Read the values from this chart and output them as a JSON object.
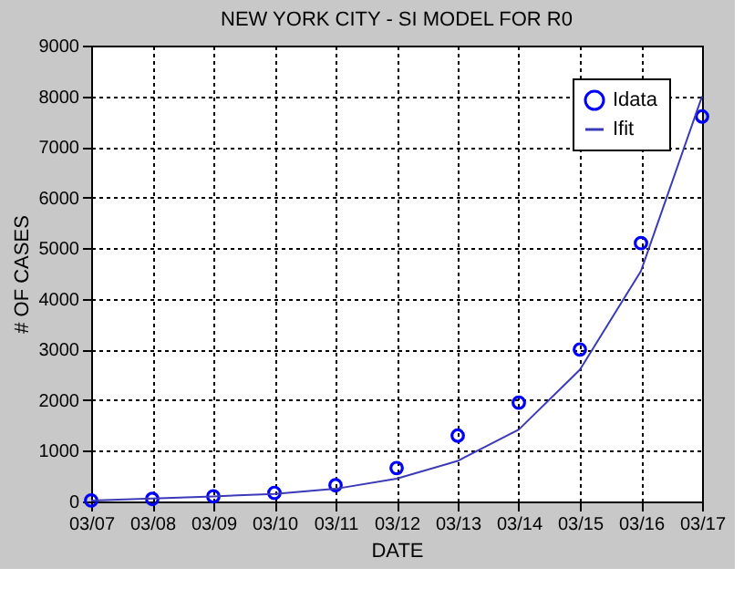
{
  "chart_data": {
    "type": "line",
    "title": "NEW YORK CITY - SI MODEL FOR R0",
    "xlabel": "DATE",
    "ylabel": "# OF CASES",
    "categories": [
      "03/07",
      "03/08",
      "03/09",
      "03/10",
      "03/11",
      "03/12",
      "03/13",
      "03/14",
      "03/15",
      "03/16",
      "03/17"
    ],
    "series": [
      {
        "name": "Idata",
        "type": "scatter",
        "marker": "circle",
        "color": "#0000ff",
        "values": [
          20,
          50,
          100,
          170,
          320,
          660,
          1300,
          1950,
          3000,
          5100,
          7600
        ]
      },
      {
        "name": "Ifit",
        "type": "line",
        "line_style": "solid",
        "color": "#3a3ab8",
        "values": [
          20,
          60,
          100,
          150,
          250,
          450,
          800,
          1420,
          2600,
          4550,
          8000
        ]
      }
    ],
    "ylim": [
      0,
      9000
    ],
    "yticks": [
      0,
      1000,
      2000,
      3000,
      4000,
      5000,
      6000,
      7000,
      8000,
      9000
    ],
    "grid": true,
    "legend": "top right"
  }
}
